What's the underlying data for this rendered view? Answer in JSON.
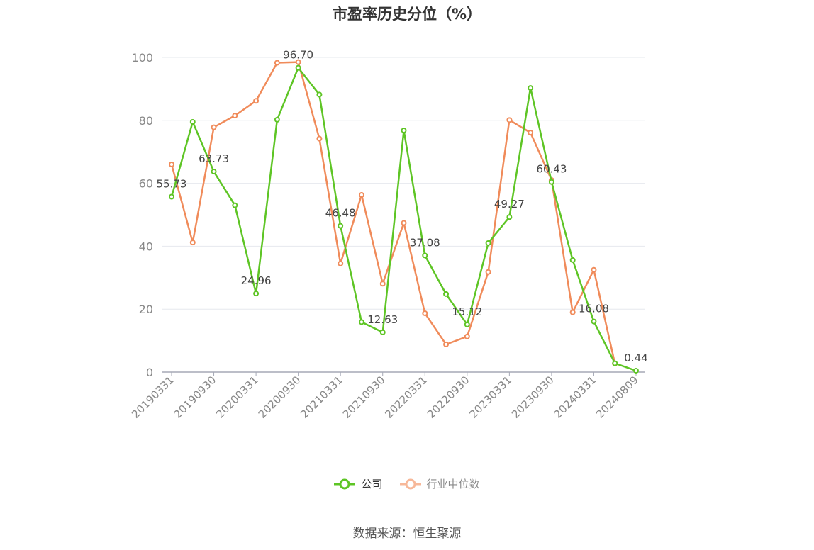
{
  "title": "市盈率历史分位（%）",
  "source": "数据来源：恒生聚源",
  "colors": {
    "company": "#5ec525",
    "industry": "#f08b5a",
    "industry_legend": "#f7b899",
    "grid": "#e6e8ee",
    "axis": "#a6a9b6",
    "tick_text": "#888888",
    "label_text": "#444444"
  },
  "chart_data": {
    "type": "line",
    "title": "市盈率历史分位（%）",
    "xlabel": "",
    "ylabel": "",
    "ylim": [
      0,
      100
    ],
    "yticks": [
      0,
      20,
      40,
      60,
      80,
      100
    ],
    "grid": true,
    "legend_position": "bottom",
    "x": [
      "20190331",
      "20190630",
      "20190930",
      "20191231",
      "20200331",
      "20200630",
      "20200930",
      "20201231",
      "20210331",
      "20210630",
      "20210930",
      "20211231",
      "20220331",
      "20220630",
      "20220930",
      "20221231",
      "20230331",
      "20230630",
      "20230930",
      "20231231",
      "20240331",
      "20240630",
      "20240809"
    ],
    "x_tick_labels": [
      "20190331",
      "20190930",
      "20200331",
      "20200930",
      "20210331",
      "20210930",
      "20220331",
      "20220930",
      "20230331",
      "20230930",
      "20240331",
      "20240809"
    ],
    "series": [
      {
        "name": "公司",
        "values": [
          55.73,
          79.5,
          63.73,
          53.0,
          24.96,
          80.2,
          96.7,
          88.2,
          46.48,
          15.9,
          12.63,
          76.8,
          37.08,
          24.8,
          15.12,
          41.0,
          49.27,
          90.3,
          60.43,
          35.6,
          16.08,
          2.8,
          0.44
        ],
        "data_labels": [
          {
            "index": 0,
            "text": "55.73"
          },
          {
            "index": 2,
            "text": "63.73"
          },
          {
            "index": 4,
            "text": "24.96"
          },
          {
            "index": 6,
            "text": "96.70"
          },
          {
            "index": 8,
            "text": "46.48"
          },
          {
            "index": 10,
            "text": "12.63"
          },
          {
            "index": 12,
            "text": "37.08"
          },
          {
            "index": 14,
            "text": "15.12"
          },
          {
            "index": 16,
            "text": "49.27"
          },
          {
            "index": 18,
            "text": "60.43"
          },
          {
            "index": 20,
            "text": "16.08"
          },
          {
            "index": 22,
            "text": "0.44"
          }
        ]
      },
      {
        "name": "行业中位数",
        "values": [
          66.0,
          41.2,
          77.8,
          81.5,
          86.2,
          98.3,
          98.5,
          74.2,
          34.5,
          56.3,
          28.1,
          47.4,
          18.7,
          8.8,
          11.3,
          31.8,
          80.1,
          76.1,
          61.0,
          19.0,
          32.5,
          2.7,
          null
        ],
        "data_labels": []
      }
    ]
  }
}
